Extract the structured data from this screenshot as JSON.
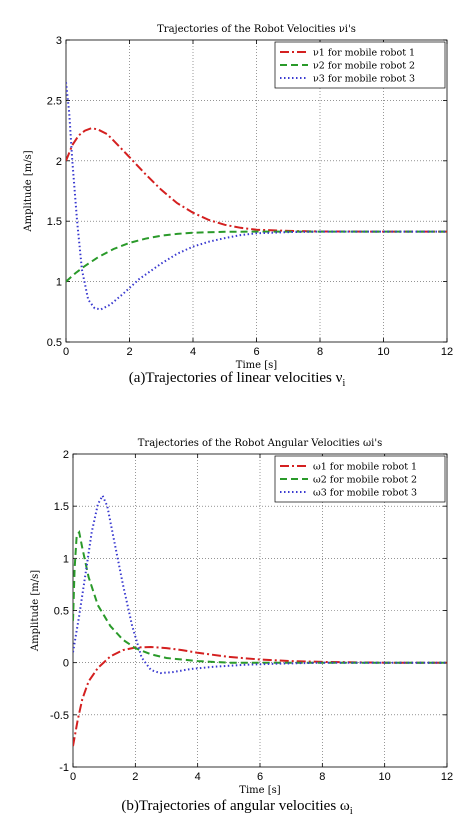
{
  "charts": [
    {
      "caption": "(a)Trajectories of linear velocities ν",
      "caption_sub": "i",
      "chart_data": {
        "type": "line",
        "title": "Trajectories of the Robot Velocities νi's",
        "xlabel": "Time [s]",
        "ylabel": "Amplitude [m/s]",
        "xlim": [
          0,
          12
        ],
        "ylim": [
          0.5,
          3
        ],
        "xticks": [
          0,
          2,
          4,
          6,
          8,
          10,
          12
        ],
        "yticks": [
          0.5,
          1,
          1.5,
          2,
          2.5,
          3
        ],
        "grid": true,
        "legend_position": "top-right",
        "series": [
          {
            "name": "ν1 for mobile robot 1",
            "color": "#d42020",
            "dash": "dashdot",
            "points": [
              [
                0,
                2.0
              ],
              [
                0.2,
                2.13
              ],
              [
                0.4,
                2.21
              ],
              [
                0.6,
                2.25
              ],
              [
                0.8,
                2.27
              ],
              [
                1.0,
                2.26
              ],
              [
                1.3,
                2.22
              ],
              [
                1.6,
                2.14
              ],
              [
                2.0,
                2.03
              ],
              [
                2.5,
                1.89
              ],
              [
                3.0,
                1.76
              ],
              [
                3.5,
                1.65
              ],
              [
                4.0,
                1.57
              ],
              [
                4.5,
                1.51
              ],
              [
                5.0,
                1.47
              ],
              [
                5.5,
                1.445
              ],
              [
                6.0,
                1.43
              ],
              [
                7.0,
                1.42
              ],
              [
                8,
                1.415
              ],
              [
                10,
                1.414
              ],
              [
                12,
                1.414
              ]
            ]
          },
          {
            "name": "ν2 for mobile robot 2",
            "color": "#2a9a2a",
            "dash": "dashed",
            "points": [
              [
                0,
                1.0
              ],
              [
                0.3,
                1.07
              ],
              [
                0.6,
                1.13
              ],
              [
                1.0,
                1.2
              ],
              [
                1.5,
                1.27
              ],
              [
                2.0,
                1.32
              ],
              [
                2.5,
                1.355
              ],
              [
                3.0,
                1.38
              ],
              [
                3.5,
                1.395
              ],
              [
                4.0,
                1.405
              ],
              [
                5.0,
                1.412
              ],
              [
                6.0,
                1.414
              ],
              [
                8,
                1.414
              ],
              [
                12,
                1.414
              ]
            ]
          },
          {
            "name": "ν3 for mobile robot 3",
            "color": "#3a3ad0",
            "dash": "dotted",
            "points": [
              [
                0,
                2.65
              ],
              [
                0.1,
                2.4
              ],
              [
                0.2,
                2.0
              ],
              [
                0.35,
                1.5
              ],
              [
                0.5,
                1.1
              ],
              [
                0.7,
                0.85
              ],
              [
                0.9,
                0.78
              ],
              [
                1.1,
                0.77
              ],
              [
                1.4,
                0.81
              ],
              [
                1.8,
                0.9
              ],
              [
                2.3,
                1.02
              ],
              [
                3.0,
                1.15
              ],
              [
                3.5,
                1.23
              ],
              [
                4.0,
                1.29
              ],
              [
                4.5,
                1.33
              ],
              [
                5.0,
                1.36
              ],
              [
                5.5,
                1.385
              ],
              [
                6.0,
                1.4
              ],
              [
                7.0,
                1.41
              ],
              [
                8,
                1.414
              ],
              [
                12,
                1.414
              ]
            ]
          }
        ]
      }
    },
    {
      "caption": "(b)Trajectories of angular velocities ω",
      "caption_sub": "i",
      "chart_data": {
        "type": "line",
        "title": "Trajectories of the Robot Angular Velocities ωi's",
        "xlabel": "Time [s]",
        "ylabel": "Amplitude [m/s]",
        "xlim": [
          0,
          12
        ],
        "ylim": [
          -1,
          2
        ],
        "xticks": [
          0,
          2,
          4,
          6,
          8,
          10,
          12
        ],
        "yticks": [
          -1,
          -0.5,
          0,
          0.5,
          1,
          1.5,
          2
        ],
        "grid": true,
        "legend_position": "top-right",
        "series": [
          {
            "name": "ω1 for mobile robot 1",
            "color": "#d42020",
            "dash": "dashdot",
            "points": [
              [
                0,
                -0.8
              ],
              [
                0.15,
                -0.55
              ],
              [
                0.3,
                -0.35
              ],
              [
                0.5,
                -0.18
              ],
              [
                0.8,
                -0.05
              ],
              [
                1.2,
                0.06
              ],
              [
                1.6,
                0.12
              ],
              [
                2.0,
                0.145
              ],
              [
                2.5,
                0.15
              ],
              [
                3.0,
                0.14
              ],
              [
                3.5,
                0.12
              ],
              [
                4.0,
                0.095
              ],
              [
                5.0,
                0.055
              ],
              [
                6.0,
                0.03
              ],
              [
                7.0,
                0.015
              ],
              [
                8.0,
                0.007
              ],
              [
                10,
                0.0
              ],
              [
                12,
                0.0
              ]
            ]
          },
          {
            "name": "ω2 for mobile robot 2",
            "color": "#2a9a2a",
            "dash": "dashed",
            "points": [
              [
                0,
                0.4
              ],
              [
                0.05,
                0.9
              ],
              [
                0.12,
                1.22
              ],
              [
                0.2,
                1.25
              ],
              [
                0.3,
                1.1
              ],
              [
                0.5,
                0.82
              ],
              [
                0.8,
                0.55
              ],
              [
                1.2,
                0.35
              ],
              [
                1.6,
                0.22
              ],
              [
                2.0,
                0.14
              ],
              [
                2.5,
                0.08
              ],
              [
                3.0,
                0.045
              ],
              [
                4.0,
                0.015
              ],
              [
                5.0,
                0.0
              ],
              [
                6,
                0.0
              ],
              [
                12,
                0.0
              ]
            ]
          },
          {
            "name": "ω3 for mobile robot 3",
            "color": "#3a3ad0",
            "dash": "dotted",
            "points": [
              [
                0,
                0.1
              ],
              [
                0.2,
                0.45
              ],
              [
                0.4,
                0.85
              ],
              [
                0.6,
                1.25
              ],
              [
                0.8,
                1.52
              ],
              [
                0.95,
                1.6
              ],
              [
                1.1,
                1.5
              ],
              [
                1.3,
                1.2
              ],
              [
                1.6,
                0.75
              ],
              [
                1.9,
                0.35
              ],
              [
                2.2,
                0.05
              ],
              [
                2.5,
                -0.07
              ],
              [
                2.8,
                -0.1
              ],
              [
                3.2,
                -0.09
              ],
              [
                3.8,
                -0.06
              ],
              [
                4.5,
                -0.04
              ],
              [
                5.5,
                -0.02
              ],
              [
                6.5,
                -0.01
              ],
              [
                8,
                0.0
              ],
              [
                12,
                0.0
              ]
            ]
          }
        ]
      }
    }
  ]
}
